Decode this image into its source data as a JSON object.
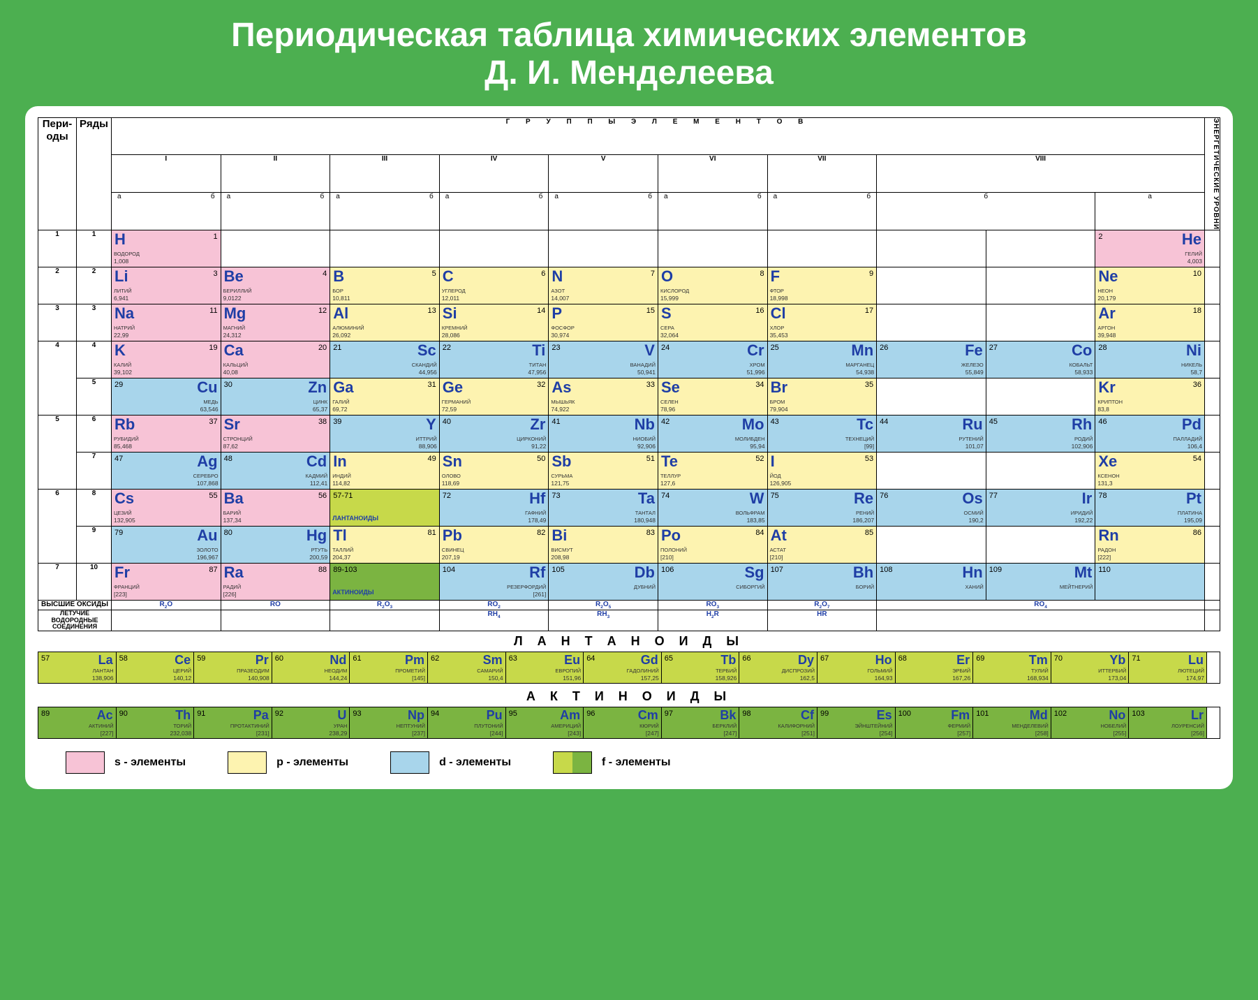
{
  "title_line1": "Периодическая таблица химических элементов",
  "title_line2": "Д. И. Менделеева",
  "colors": {
    "page_bg": "#4caf50",
    "card_bg": "#ffffff",
    "s_block": "#f7c3d6",
    "p_block": "#fdf3b0",
    "d_block": "#a8d5eb",
    "f_block_a": "#c7d94a",
    "f_block_b": "#7bb441",
    "symbol": "#1f3ea5"
  },
  "headers": {
    "periods": "Пери-\nоды",
    "rows": "Ряды",
    "groups": "Г Р У П П Ы   Э Л Е М Е Н Т О В",
    "energy_levels": "ЭНЕРГЕТИЧЕСКИЕ УРОВНИ",
    "roman": [
      "I",
      "II",
      "III",
      "IV",
      "V",
      "VI",
      "VII",
      "VIII"
    ],
    "sub_a": "а",
    "sub_b": "б"
  },
  "periods": [
    {
      "n": "1",
      "rows": [
        "1"
      ]
    },
    {
      "n": "2",
      "rows": [
        "2"
      ]
    },
    {
      "n": "3",
      "rows": [
        "3"
      ]
    },
    {
      "n": "4",
      "rows": [
        "4",
        "5"
      ]
    },
    {
      "n": "5",
      "rows": [
        "6",
        "7"
      ]
    },
    {
      "n": "6",
      "rows": [
        "8",
        "9"
      ]
    },
    {
      "n": "7",
      "rows": [
        "10"
      ]
    }
  ],
  "row1": [
    {
      "num": "1",
      "sym": "H",
      "name": "ВОДОРОД",
      "mass": "1,008",
      "blk": "s",
      "pos": "left",
      "col": 0
    },
    {
      "num": "2",
      "sym": "He",
      "name": "ГЕЛИЙ",
      "mass": "4,003",
      "blk": "s",
      "pos": "right",
      "col": 9
    }
  ],
  "row2": [
    {
      "num": "3",
      "sym": "Li",
      "name": "ЛИТИЙ",
      "mass": "6,941",
      "blk": "s",
      "col": 0
    },
    {
      "num": "4",
      "sym": "Be",
      "name": "БЕРИЛЛИЙ",
      "mass": "9,0122",
      "blk": "s",
      "col": 1
    },
    {
      "num": "5",
      "sym": "B",
      "name": "БОР",
      "mass": "10,811",
      "blk": "p",
      "col": 2
    },
    {
      "num": "6",
      "sym": "C",
      "name": "УГЛЕРОД",
      "mass": "12,011",
      "blk": "p",
      "col": 3
    },
    {
      "num": "7",
      "sym": "N",
      "name": "АЗОТ",
      "mass": "14,007",
      "blk": "p",
      "col": 4
    },
    {
      "num": "8",
      "sym": "O",
      "name": "КИСЛОРОД",
      "mass": "15,999",
      "blk": "p",
      "col": 5
    },
    {
      "num": "9",
      "sym": "F",
      "name": "ФТОР",
      "mass": "18,998",
      "blk": "p",
      "col": 6
    },
    {
      "num": "10",
      "sym": "Ne",
      "name": "НЕОН",
      "mass": "20,179",
      "blk": "p",
      "col": 9
    }
  ],
  "row3": [
    {
      "num": "11",
      "sym": "Na",
      "name": "НАТРИЙ",
      "mass": "22,99",
      "blk": "s",
      "col": 0
    },
    {
      "num": "12",
      "sym": "Mg",
      "name": "МАГНИЙ",
      "mass": "24,312",
      "blk": "s",
      "col": 1
    },
    {
      "num": "13",
      "sym": "Al",
      "name": "АЛЮМИНИЙ",
      "mass": "26,092",
      "blk": "p",
      "col": 2
    },
    {
      "num": "14",
      "sym": "Si",
      "name": "КРЕМНИЙ",
      "mass": "28,086",
      "blk": "p",
      "col": 3
    },
    {
      "num": "15",
      "sym": "P",
      "name": "ФОСФОР",
      "mass": "30,974",
      "blk": "p",
      "col": 4
    },
    {
      "num": "16",
      "sym": "S",
      "name": "СЕРА",
      "mass": "32,064",
      "blk": "p",
      "col": 5
    },
    {
      "num": "17",
      "sym": "Cl",
      "name": "ХЛОР",
      "mass": "35,453",
      "blk": "p",
      "col": 6
    },
    {
      "num": "18",
      "sym": "Ar",
      "name": "АРГОН",
      "mass": "39,948",
      "blk": "p",
      "col": 9
    }
  ],
  "row4": [
    {
      "num": "19",
      "sym": "K",
      "name": "КАЛИЙ",
      "mass": "39,102",
      "blk": "s",
      "col": 0,
      "pos": "left"
    },
    {
      "num": "20",
      "sym": "Ca",
      "name": "КАЛЬЦИЙ",
      "mass": "40,08",
      "blk": "s",
      "col": 1,
      "pos": "left"
    },
    {
      "num": "21",
      "sym": "Sc",
      "name": "СКАНДИЙ",
      "mass": "44,956",
      "blk": "d",
      "col": 2,
      "pos": "right"
    },
    {
      "num": "22",
      "sym": "Ti",
      "name": "ТИТАН",
      "mass": "47,956",
      "blk": "d",
      "col": 3,
      "pos": "right"
    },
    {
      "num": "23",
      "sym": "V",
      "name": "ВАНАДИЙ",
      "mass": "50,941",
      "blk": "d",
      "col": 4,
      "pos": "right"
    },
    {
      "num": "24",
      "sym": "Cr",
      "name": "ХРОМ",
      "mass": "51,996",
      "blk": "d",
      "col": 5,
      "pos": "right"
    },
    {
      "num": "25",
      "sym": "Mn",
      "name": "МАРГАНЕЦ",
      "mass": "54,938",
      "blk": "d",
      "col": 6,
      "pos": "right"
    },
    {
      "num": "26",
      "sym": "Fe",
      "name": "ЖЕЛЕЗО",
      "mass": "55,849",
      "blk": "d",
      "col": 7,
      "pos": "right"
    },
    {
      "num": "27",
      "sym": "Co",
      "name": "КОБАЛЬТ",
      "mass": "58,933",
      "blk": "d",
      "col": 8,
      "pos": "right"
    },
    {
      "num": "28",
      "sym": "Ni",
      "name": "НИКЕЛЬ",
      "mass": "58,7",
      "blk": "d",
      "col": 9,
      "pos": "right"
    }
  ],
  "row5": [
    {
      "num": "29",
      "sym": "Cu",
      "name": "МЕДЬ",
      "mass": "63,546",
      "blk": "d",
      "col": 0,
      "pos": "right"
    },
    {
      "num": "30",
      "sym": "Zn",
      "name": "ЦИНК",
      "mass": "65,37",
      "blk": "d",
      "col": 1,
      "pos": "right"
    },
    {
      "num": "31",
      "sym": "Ga",
      "name": "ГАЛИЙ",
      "mass": "69,72",
      "blk": "p",
      "col": 2,
      "pos": "left"
    },
    {
      "num": "32",
      "sym": "Ge",
      "name": "ГЕРМАНИЙ",
      "mass": "72,59",
      "blk": "p",
      "col": 3,
      "pos": "left"
    },
    {
      "num": "33",
      "sym": "As",
      "name": "МЫШЬЯК",
      "mass": "74,922",
      "blk": "p",
      "col": 4,
      "pos": "left"
    },
    {
      "num": "34",
      "sym": "Se",
      "name": "СЕЛЕН",
      "mass": "78,96",
      "blk": "p",
      "col": 5,
      "pos": "left"
    },
    {
      "num": "35",
      "sym": "Br",
      "name": "БРОМ",
      "mass": "79,904",
      "blk": "p",
      "col": 6,
      "pos": "left"
    },
    {
      "num": "36",
      "sym": "Kr",
      "name": "КРИПТОН",
      "mass": "83,8",
      "blk": "p",
      "col": 9,
      "pos": "left"
    }
  ],
  "row6": [
    {
      "num": "37",
      "sym": "Rb",
      "name": "РУБИДИЙ",
      "mass": "85,468",
      "blk": "s",
      "col": 0,
      "pos": "left"
    },
    {
      "num": "38",
      "sym": "Sr",
      "name": "СТРОНЦИЙ",
      "mass": "87,62",
      "blk": "s",
      "col": 1,
      "pos": "left"
    },
    {
      "num": "39",
      "sym": "Y",
      "name": "ИТТРИЙ",
      "mass": "88,906",
      "blk": "d",
      "col": 2,
      "pos": "right"
    },
    {
      "num": "40",
      "sym": "Zr",
      "name": "ЦИРКОНИЙ",
      "mass": "91,22",
      "blk": "d",
      "col": 3,
      "pos": "right"
    },
    {
      "num": "41",
      "sym": "Nb",
      "name": "НИОБИЙ",
      "mass": "92,906",
      "blk": "d",
      "col": 4,
      "pos": "right"
    },
    {
      "num": "42",
      "sym": "Mo",
      "name": "МОЛИБДЕН",
      "mass": "95,94",
      "blk": "d",
      "col": 5,
      "pos": "right"
    },
    {
      "num": "43",
      "sym": "Tc",
      "name": "ТЕХНЕЦИЙ",
      "mass": "[99]",
      "blk": "d",
      "col": 6,
      "pos": "right"
    },
    {
      "num": "44",
      "sym": "Ru",
      "name": "РУТЕНИЙ",
      "mass": "101,07",
      "blk": "d",
      "col": 7,
      "pos": "right"
    },
    {
      "num": "45",
      "sym": "Rh",
      "name": "РОДИЙ",
      "mass": "102,906",
      "blk": "d",
      "col": 8,
      "pos": "right"
    },
    {
      "num": "46",
      "sym": "Pd",
      "name": "ПАЛЛАДИЙ",
      "mass": "106,4",
      "blk": "d",
      "col": 9,
      "pos": "right"
    }
  ],
  "row7": [
    {
      "num": "47",
      "sym": "Ag",
      "name": "СЕРЕБРО",
      "mass": "107,868",
      "blk": "d",
      "col": 0,
      "pos": "right"
    },
    {
      "num": "48",
      "sym": "Cd",
      "name": "КАДМИЙ",
      "mass": "112,41",
      "blk": "d",
      "col": 1,
      "pos": "right"
    },
    {
      "num": "49",
      "sym": "In",
      "name": "ИНДИЙ",
      "mass": "114,82",
      "blk": "p",
      "col": 2,
      "pos": "left"
    },
    {
      "num": "50",
      "sym": "Sn",
      "name": "ОЛОВО",
      "mass": "118,69",
      "blk": "p",
      "col": 3,
      "pos": "left"
    },
    {
      "num": "51",
      "sym": "Sb",
      "name": "СУРЬМА",
      "mass": "121,75",
      "blk": "p",
      "col": 4,
      "pos": "left"
    },
    {
      "num": "52",
      "sym": "Te",
      "name": "ТЕЛЛУР",
      "mass": "127,6",
      "blk": "p",
      "col": 5,
      "pos": "left"
    },
    {
      "num": "53",
      "sym": "I",
      "name": "ЙОД",
      "mass": "126,905",
      "blk": "p",
      "col": 6,
      "pos": "left"
    },
    {
      "num": "54",
      "sym": "Xe",
      "name": "КСЕНОН",
      "mass": "131,3",
      "blk": "p",
      "col": 9,
      "pos": "left"
    }
  ],
  "row8": [
    {
      "num": "55",
      "sym": "Cs",
      "name": "ЦЕЗИЙ",
      "mass": "132,905",
      "blk": "s",
      "col": 0,
      "pos": "left"
    },
    {
      "num": "56",
      "sym": "Ba",
      "name": "БАРИЙ",
      "mass": "137,34",
      "blk": "s",
      "col": 1,
      "pos": "left"
    },
    {
      "special": true,
      "range": "57-71",
      "label": "ЛАНТАНОИДЫ",
      "blk": "f",
      "col": 2
    },
    {
      "num": "72",
      "sym": "Hf",
      "name": "ГАФНИЙ",
      "mass": "178,49",
      "blk": "d",
      "col": 3,
      "pos": "right"
    },
    {
      "num": "73",
      "sym": "Ta",
      "name": "ТАНТАЛ",
      "mass": "180,948",
      "blk": "d",
      "col": 4,
      "pos": "right"
    },
    {
      "num": "74",
      "sym": "W",
      "name": "ВОЛЬФРАМ",
      "mass": "183,85",
      "blk": "d",
      "col": 5,
      "pos": "right"
    },
    {
      "num": "75",
      "sym": "Re",
      "name": "РЕНИЙ",
      "mass": "186,207",
      "blk": "d",
      "col": 6,
      "pos": "right"
    },
    {
      "num": "76",
      "sym": "Os",
      "name": "ОСМИЙ",
      "mass": "190,2",
      "blk": "d",
      "col": 7,
      "pos": "right"
    },
    {
      "num": "77",
      "sym": "Ir",
      "name": "ИРИДИЙ",
      "mass": "192,22",
      "blk": "d",
      "col": 8,
      "pos": "right"
    },
    {
      "num": "78",
      "sym": "Pt",
      "name": "ПЛАТИНА",
      "mass": "195,09",
      "blk": "d",
      "col": 9,
      "pos": "right"
    }
  ],
  "row9": [
    {
      "num": "79",
      "sym": "Au",
      "name": "ЗОЛОТО",
      "mass": "196,967",
      "blk": "d",
      "col": 0,
      "pos": "right"
    },
    {
      "num": "80",
      "sym": "Hg",
      "name": "РТУТЬ",
      "mass": "200,59",
      "blk": "d",
      "col": 1,
      "pos": "right"
    },
    {
      "num": "81",
      "sym": "Tl",
      "name": "ТАЛЛИЙ",
      "mass": "204,37",
      "blk": "p",
      "col": 2,
      "pos": "left"
    },
    {
      "num": "82",
      "sym": "Pb",
      "name": "СВИНЕЦ",
      "mass": "207,19",
      "blk": "p",
      "col": 3,
      "pos": "left"
    },
    {
      "num": "83",
      "sym": "Bi",
      "name": "ВИСМУТ",
      "mass": "208,98",
      "blk": "p",
      "col": 4,
      "pos": "left"
    },
    {
      "num": "84",
      "sym": "Po",
      "name": "ПОЛОНИЙ",
      "mass": "[210]",
      "blk": "p",
      "col": 5,
      "pos": "left"
    },
    {
      "num": "85",
      "sym": "At",
      "name": "АСТАТ",
      "mass": "[210]",
      "blk": "p",
      "col": 6,
      "pos": "left"
    },
    {
      "num": "86",
      "sym": "Rn",
      "name": "РАДОН",
      "mass": "[222]",
      "blk": "p",
      "col": 9,
      "pos": "left"
    }
  ],
  "row10": [
    {
      "num": "87",
      "sym": "Fr",
      "name": "ФРАНЦИЙ",
      "mass": "[223]",
      "blk": "s",
      "col": 0,
      "pos": "left"
    },
    {
      "num": "88",
      "sym": "Ra",
      "name": "РАДИЙ",
      "mass": "[226]",
      "blk": "s",
      "col": 1,
      "pos": "left"
    },
    {
      "special": true,
      "range": "89-103",
      "label": "АКТИНОИДЫ",
      "blk": "f2",
      "col": 2
    },
    {
      "num": "104",
      "sym": "Rf",
      "name": "РЕЗЕРФОРДИЙ",
      "mass": "[261]",
      "blk": "d",
      "col": 3,
      "pos": "right"
    },
    {
      "num": "105",
      "sym": "Db",
      "name": "ДУБНИЙ",
      "mass": "",
      "blk": "d",
      "col": 4,
      "pos": "right"
    },
    {
      "num": "106",
      "sym": "Sg",
      "name": "СИБОРГИЙ",
      "mass": "",
      "blk": "d",
      "col": 5,
      "pos": "right"
    },
    {
      "num": "107",
      "sym": "Bh",
      "name": "БОРИЙ",
      "mass": "",
      "blk": "d",
      "col": 6,
      "pos": "right"
    },
    {
      "num": "108",
      "sym": "Hn",
      "name": "ХАНИЙ",
      "mass": "",
      "blk": "d",
      "col": 7,
      "pos": "right"
    },
    {
      "num": "109",
      "sym": "Mt",
      "name": "МЕЙТНЕРИЙ",
      "mass": "",
      "blk": "d",
      "col": 8,
      "pos": "right"
    },
    {
      "num": "110",
      "sym": "",
      "name": "",
      "mass": "",
      "blk": "d",
      "col": 9,
      "pos": "right"
    }
  ],
  "oxides": {
    "label": "высшие оксиды",
    "vals": [
      "R₂O",
      "RO",
      "R₂O₃",
      "RO₂",
      "R₂O₅",
      "RO₃",
      "R₂O₇",
      "RO₄"
    ]
  },
  "hydrides": {
    "label": "летучие водородные соединения",
    "vals": [
      "",
      "",
      "",
      "RH₄",
      "RH₃",
      "H₂R",
      "HR",
      ""
    ]
  },
  "lanthanides": {
    "title": "Л А Н Т А Н О И Д Ы",
    "items": [
      {
        "num": "57",
        "sym": "La",
        "name": "ЛАНТАН",
        "mass": "138,906"
      },
      {
        "num": "58",
        "sym": "Ce",
        "name": "ЦЕРИЙ",
        "mass": "140,12"
      },
      {
        "num": "59",
        "sym": "Pr",
        "name": "ПРАЗЕОДИМ",
        "mass": "140,908"
      },
      {
        "num": "60",
        "sym": "Nd",
        "name": "НЕОДИМ",
        "mass": "144,24"
      },
      {
        "num": "61",
        "sym": "Pm",
        "name": "ПРОМЕТИЙ",
        "mass": "[145]"
      },
      {
        "num": "62",
        "sym": "Sm",
        "name": "САМАРИЙ",
        "mass": "150,4"
      },
      {
        "num": "63",
        "sym": "Eu",
        "name": "ЕВРОПИЙ",
        "mass": "151,96"
      },
      {
        "num": "64",
        "sym": "Gd",
        "name": "ГАДОЛИНИЙ",
        "mass": "157,25"
      },
      {
        "num": "65",
        "sym": "Tb",
        "name": "ТЕРБИЙ",
        "mass": "158,926"
      },
      {
        "num": "66",
        "sym": "Dy",
        "name": "ДИСПРОЗИЙ",
        "mass": "162,5"
      },
      {
        "num": "67",
        "sym": "Ho",
        "name": "ГОЛЬМИЙ",
        "mass": "164,93"
      },
      {
        "num": "68",
        "sym": "Er",
        "name": "ЭРБИЙ",
        "mass": "167,26"
      },
      {
        "num": "69",
        "sym": "Tm",
        "name": "ТУЛИЙ",
        "mass": "168,934"
      },
      {
        "num": "70",
        "sym": "Yb",
        "name": "ИТТЕРБИЙ",
        "mass": "173,04"
      },
      {
        "num": "71",
        "sym": "Lu",
        "name": "ЛЮТЕЦИЙ",
        "mass": "174,97"
      }
    ]
  },
  "actinides": {
    "title": "А К Т И Н О И Д Ы",
    "items": [
      {
        "num": "89",
        "sym": "Ac",
        "name": "АКТИНИЙ",
        "mass": "[227]"
      },
      {
        "num": "90",
        "sym": "Th",
        "name": "ТОРИЙ",
        "mass": "232,038"
      },
      {
        "num": "91",
        "sym": "Pa",
        "name": "ПРОТАКТИНИЙ",
        "mass": "[231]"
      },
      {
        "num": "92",
        "sym": "U",
        "name": "УРАН",
        "mass": "238,29"
      },
      {
        "num": "93",
        "sym": "Np",
        "name": "НЕПТУНИЙ",
        "mass": "[237]"
      },
      {
        "num": "94",
        "sym": "Pu",
        "name": "ПЛУТОНИЙ",
        "mass": "[244]"
      },
      {
        "num": "95",
        "sym": "Am",
        "name": "АМЕРИЦИЙ",
        "mass": "[243]"
      },
      {
        "num": "96",
        "sym": "Cm",
        "name": "КЮРИЙ",
        "mass": "[247]"
      },
      {
        "num": "97",
        "sym": "Bk",
        "name": "БЕРКЛИЙ",
        "mass": "[247]"
      },
      {
        "num": "98",
        "sym": "Cf",
        "name": "КАЛИФОРНИЙ",
        "mass": "[251]"
      },
      {
        "num": "99",
        "sym": "Es",
        "name": "ЭЙНШТЕЙНИЙ",
        "mass": "[254]"
      },
      {
        "num": "100",
        "sym": "Fm",
        "name": "ФЕРМИЙ",
        "mass": "[257]"
      },
      {
        "num": "101",
        "sym": "Md",
        "name": "МЕНДЕЛЕВИЙ",
        "mass": "[258]"
      },
      {
        "num": "102",
        "sym": "No",
        "name": "НОБЕЛИЙ",
        "mass": "[255]"
      },
      {
        "num": "103",
        "sym": "Lr",
        "name": "ЛОУРЕНСИЙ",
        "mass": "[256]"
      }
    ]
  },
  "legend": [
    {
      "label": "s - элементы",
      "color": "#f7c3d6"
    },
    {
      "label": "p - элементы",
      "color": "#fdf3b0"
    },
    {
      "label": "d - элементы",
      "color": "#a8d5eb"
    },
    {
      "label": "f - элементы",
      "split": [
        "#c7d94a",
        "#7bb441"
      ]
    }
  ]
}
